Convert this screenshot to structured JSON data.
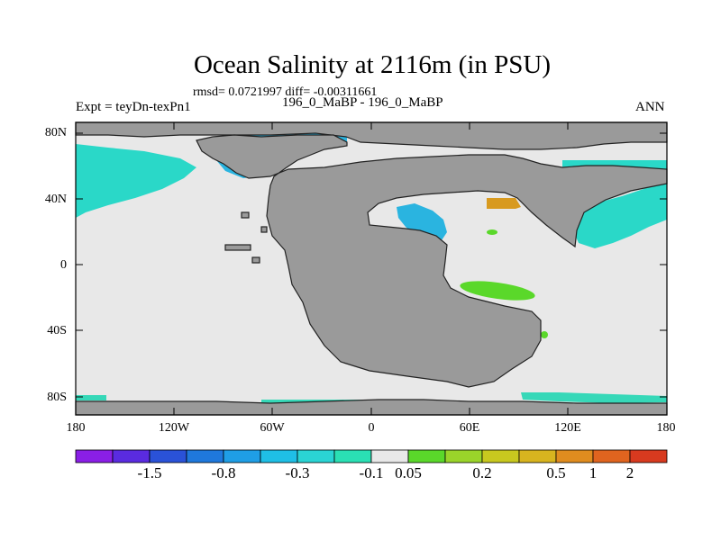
{
  "title": "Ocean Salinity at 2116m (in PSU)",
  "stats_text": "rmsd= 0.0721997 diff= -0.00311661",
  "left_label": "Expt = teyDn-texPn1",
  "center_label": "196_0_MaBP - 196_0_MaBP",
  "right_label": "ANN",
  "y_axis_labels": [
    "80N",
    "40N",
    "0",
    "40S",
    "80S"
  ],
  "x_axis_labels": [
    "180",
    "120W",
    "60W",
    "0",
    "60E",
    "120E",
    "180"
  ],
  "colorbar": {
    "colors": [
      "#8a1fe6",
      "#5a2be0",
      "#2a52d8",
      "#1f78dc",
      "#1f9ee6",
      "#1fbfe6",
      "#2ad4d4",
      "#2ae0b4",
      "#e8e8e8",
      "#5ad82a",
      "#9ad42a",
      "#c8c81f",
      "#d8b41f",
      "#e08c1f",
      "#e0641f",
      "#d83a1f"
    ],
    "labels": [
      "-1.5",
      "-0.8",
      "-0.3",
      "-0.1",
      "0.05",
      "0.2",
      "0.5",
      "1",
      "2"
    ]
  },
  "map_colors": {
    "land": "#9a9a9a",
    "ocean_neutral": "#e8e8e8",
    "fresher": "#2ad8c8",
    "fresher_light": "#36d8b8",
    "fresher_strong": "#2ab4e0",
    "saltier": "#5ad82a",
    "saltier_strong": "#d89a1f"
  }
}
